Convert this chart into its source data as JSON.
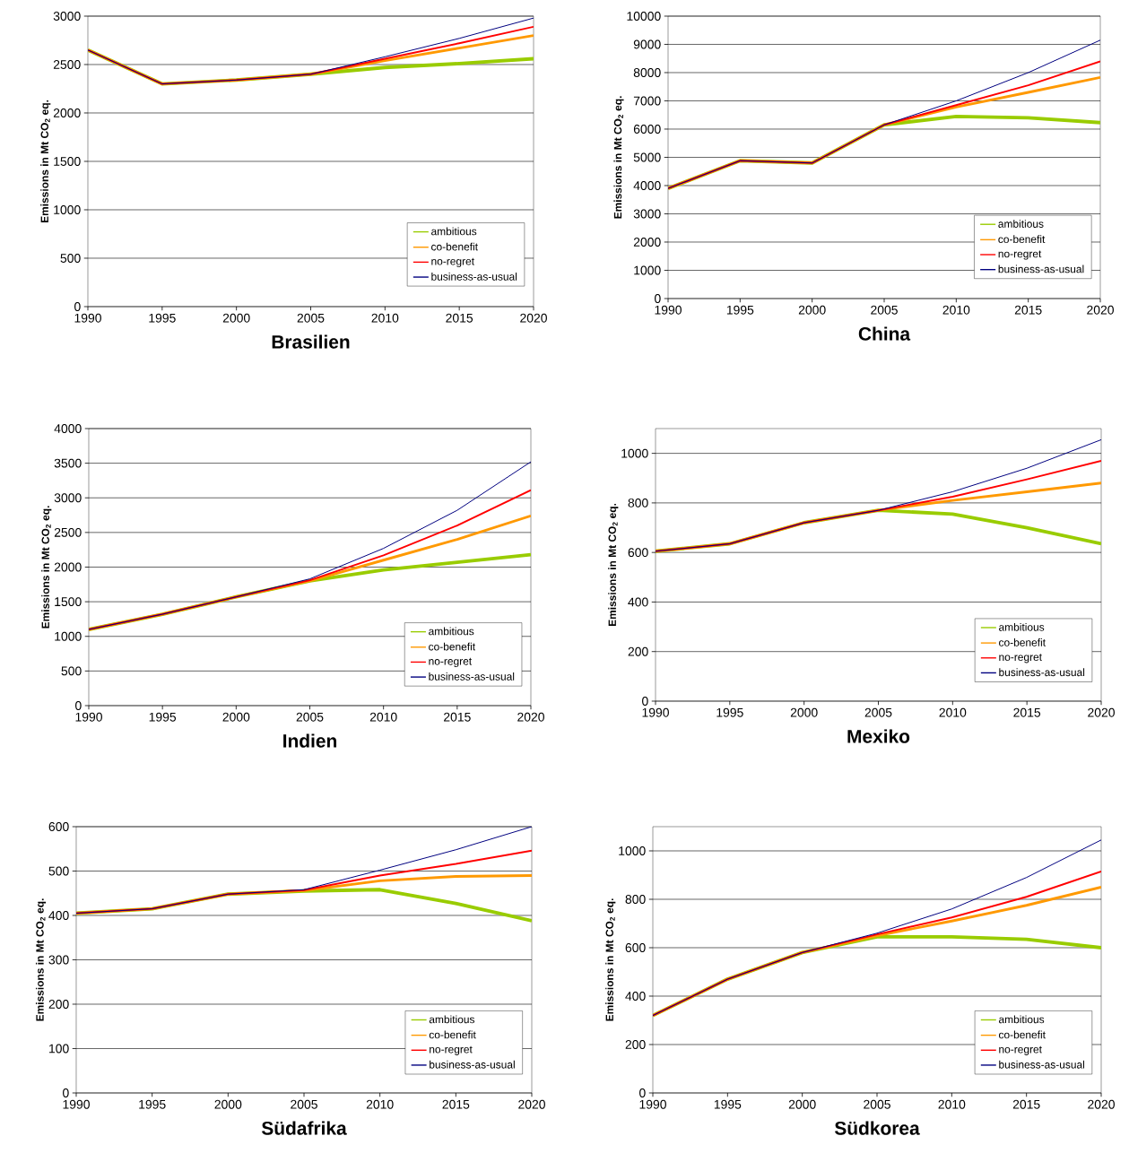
{
  "chart_data": [
    {
      "type": "line",
      "title": "Brasilien",
      "ylabel": "Emissions in Mt CO$_{2}$ eq.",
      "x": [
        1990,
        1995,
        2000,
        2005,
        2010,
        2015,
        2020
      ],
      "xlim": [
        1990,
        2020
      ],
      "xticks": [
        1990,
        1995,
        2000,
        2005,
        2010,
        2015,
        2020
      ],
      "ylim": [
        0,
        3000
      ],
      "yticks": [
        0,
        500,
        1000,
        1500,
        2000,
        2500,
        3000
      ],
      "grid": "y",
      "legend": "bottom right",
      "series": [
        {
          "name": "ambitious",
          "color": "#99cc00",
          "values": [
            2650,
            2300,
            2340,
            2400,
            2470,
            2510,
            2560
          ]
        },
        {
          "name": "co-benefit",
          "color": "#ff9900",
          "values": [
            2650,
            2300,
            2340,
            2400,
            2540,
            2670,
            2800
          ]
        },
        {
          "name": "no-regret",
          "color": "#ff0000",
          "values": [
            2650,
            2300,
            2340,
            2400,
            2560,
            2720,
            2890
          ]
        },
        {
          "name": "business-as-usual",
          "color": "#000080",
          "values": [
            2650,
            2300,
            2340,
            2400,
            2580,
            2770,
            2980
          ]
        }
      ]
    },
    {
      "type": "line",
      "title": "China",
      "ylabel": "Emissions in Mt CO$_{2}$ eq.",
      "x": [
        1990,
        1995,
        2000,
        2005,
        2010,
        2015,
        2020
      ],
      "xlim": [
        1990,
        2020
      ],
      "xticks": [
        1990,
        1995,
        2000,
        2005,
        2010,
        2015,
        2020
      ],
      "ylim": [
        0,
        10000
      ],
      "yticks": [
        0,
        1000,
        2000,
        3000,
        4000,
        5000,
        6000,
        7000,
        8000,
        9000,
        10000
      ],
      "grid": "y",
      "legend": "bottom right",
      "series": [
        {
          "name": "ambitious",
          "color": "#99cc00",
          "values": [
            3900,
            4880,
            4800,
            6150,
            6450,
            6400,
            6230
          ]
        },
        {
          "name": "co-benefit",
          "color": "#ff9900",
          "values": [
            3900,
            4880,
            4800,
            6150,
            6780,
            7300,
            7830
          ]
        },
        {
          "name": "no-regret",
          "color": "#ff0000",
          "values": [
            3900,
            4880,
            4800,
            6150,
            6850,
            7550,
            8400
          ]
        },
        {
          "name": "business-as-usual",
          "color": "#000080",
          "values": [
            3900,
            4880,
            4800,
            6150,
            7000,
            8000,
            9150
          ]
        }
      ]
    },
    {
      "type": "line",
      "title": "Indien",
      "ylabel": "Emissions in Mt CO$_{2}$ eq.",
      "x": [
        1990,
        1995,
        2000,
        2005,
        2010,
        2015,
        2020
      ],
      "xlim": [
        1990,
        2020
      ],
      "xticks": [
        1990,
        1995,
        2000,
        2005,
        2010,
        2015,
        2020
      ],
      "ylim": [
        0,
        4000
      ],
      "yticks": [
        0,
        500,
        1000,
        1500,
        2000,
        2500,
        3000,
        3500,
        4000
      ],
      "grid": "y",
      "legend": "bottom right",
      "series": [
        {
          "name": "ambitious",
          "color": "#99cc00",
          "values": [
            1100,
            1320,
            1570,
            1800,
            1960,
            2070,
            2180
          ]
        },
        {
          "name": "co-benefit",
          "color": "#ff9900",
          "values": [
            1100,
            1320,
            1570,
            1800,
            2100,
            2400,
            2740
          ]
        },
        {
          "name": "no-regret",
          "color": "#ff0000",
          "values": [
            1100,
            1320,
            1570,
            1810,
            2170,
            2600,
            3110
          ]
        },
        {
          "name": "business-as-usual",
          "color": "#000080",
          "values": [
            1100,
            1320,
            1570,
            1830,
            2270,
            2820,
            3520
          ]
        }
      ]
    },
    {
      "type": "line",
      "title": "Mexiko",
      "ylabel": "Emissions in Mt CO$_{2}$ eq.",
      "x": [
        1990,
        1995,
        2000,
        2005,
        2010,
        2015,
        2020
      ],
      "xlim": [
        1990,
        2020
      ],
      "xticks": [
        1990,
        1995,
        2000,
        2005,
        2010,
        2015,
        2020
      ],
      "ylim": [
        0,
        1100
      ],
      "yticks": [
        0,
        200,
        400,
        600,
        800,
        1000
      ],
      "grid": "y",
      "legend": "bottom right",
      "series": [
        {
          "name": "ambitious",
          "color": "#99cc00",
          "values": [
            605,
            635,
            720,
            770,
            755,
            700,
            635
          ]
        },
        {
          "name": "co-benefit",
          "color": "#ff9900",
          "values": [
            605,
            635,
            720,
            770,
            810,
            845,
            880
          ]
        },
        {
          "name": "no-regret",
          "color": "#ff0000",
          "values": [
            605,
            635,
            720,
            770,
            825,
            895,
            970
          ]
        },
        {
          "name": "business-as-usual",
          "color": "#000080",
          "values": [
            605,
            635,
            720,
            770,
            845,
            940,
            1055
          ]
        }
      ]
    },
    {
      "type": "line",
      "title": "Südafrika",
      "ylabel": "Emissions in Mt CO$_{2}$ eq.",
      "x": [
        1990,
        1995,
        2000,
        2005,
        2010,
        2015,
        2020
      ],
      "xlim": [
        1990,
        2020
      ],
      "xticks": [
        1990,
        1995,
        2000,
        2005,
        2010,
        2015,
        2020
      ],
      "ylim": [
        0,
        600
      ],
      "yticks": [
        0,
        100,
        200,
        300,
        400,
        500,
        600
      ],
      "grid": "y",
      "legend": "bottom right",
      "series": [
        {
          "name": "ambitious",
          "color": "#99cc00",
          "values": [
            405,
            415,
            448,
            455,
            458,
            427,
            388
          ]
        },
        {
          "name": "co-benefit",
          "color": "#ff9900",
          "values": [
            405,
            415,
            448,
            456,
            478,
            488,
            490
          ]
        },
        {
          "name": "no-regret",
          "color": "#ff0000",
          "values": [
            405,
            415,
            448,
            457,
            490,
            516,
            546
          ]
        },
        {
          "name": "business-as-usual",
          "color": "#000080",
          "values": [
            405,
            415,
            448,
            458,
            502,
            548,
            600
          ]
        }
      ]
    },
    {
      "type": "line",
      "title": "Südkorea",
      "ylabel": "Emissions in Mt CO$_{2}$ eq.",
      "x": [
        1990,
        1995,
        2000,
        2005,
        2010,
        2015,
        2020
      ],
      "xlim": [
        1990,
        2020
      ],
      "xticks": [
        1990,
        1995,
        2000,
        2005,
        2010,
        2015,
        2020
      ],
      "ylim": [
        0,
        1100
      ],
      "yticks": [
        0,
        200,
        400,
        600,
        800,
        1000
      ],
      "grid": "y",
      "legend": "bottom right",
      "series": [
        {
          "name": "ambitious",
          "color": "#99cc00",
          "values": [
            320,
            470,
            580,
            645,
            645,
            635,
            600
          ]
        },
        {
          "name": "co-benefit",
          "color": "#ff9900",
          "values": [
            320,
            470,
            580,
            650,
            710,
            775,
            850
          ]
        },
        {
          "name": "no-regret",
          "color": "#ff0000",
          "values": [
            320,
            470,
            580,
            655,
            725,
            810,
            915
          ]
        },
        {
          "name": "business-as-usual",
          "color": "#000080",
          "values": [
            320,
            470,
            580,
            660,
            760,
            890,
            1045
          ]
        }
      ]
    }
  ]
}
